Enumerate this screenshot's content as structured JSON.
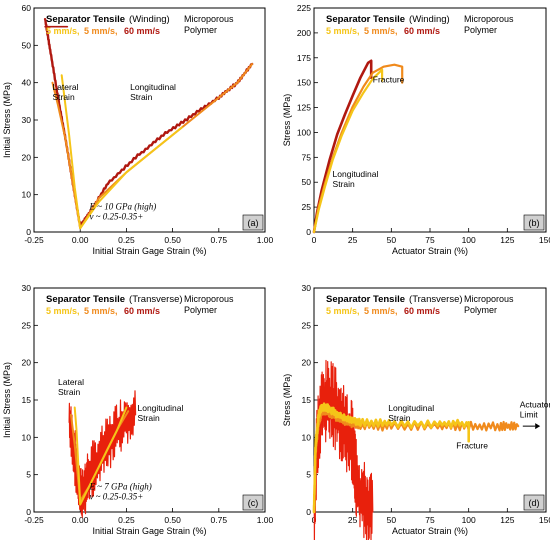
{
  "colors": {
    "slow": "#f5c518",
    "mid": "#f08a1c",
    "fast": "#b01810",
    "fast_d": "#e8200c"
  },
  "chart_data": [
    {
      "id": "a",
      "type": "line",
      "title": "Separator Tensile",
      "title_suffix": "(Winding)",
      "material": [
        "Microporous",
        "Polymer"
      ],
      "speeds": [
        "5 mm/s",
        "5 mm/s",
        "60 mm/s"
      ],
      "xlabel": "Initial Strain Gage Strain (%)",
      "ylabel": "Initial Stress (MPa)",
      "xlim": [
        -0.25,
        1.0
      ],
      "ylim": [
        0,
        60
      ],
      "xticks": [
        -0.25,
        0,
        0.25,
        0.5,
        0.75,
        1.0
      ],
      "xtick_labels": [
        "-0.25",
        "0.00",
        "0.25",
        "0.50",
        "0.75",
        "1.00"
      ],
      "yticks": [
        0,
        10,
        20,
        30,
        40,
        50,
        60
      ],
      "ytick_labels": [
        "0",
        "10",
        "20",
        "30",
        "40",
        "50",
        "60"
      ],
      "panel_label": "(a)",
      "annotations": [
        {
          "lines": [
            "Lateral",
            "Strain"
          ],
          "x": -0.15,
          "y": 38
        },
        {
          "lines": [
            "Longitudinal",
            "Strain"
          ],
          "x": 0.27,
          "y": 38
        }
      ],
      "formula": [
        "E ~ 10 GPa (high)",
        "ν ~ 0.25-0.35+"
      ],
      "formula_at": [
        0.05,
        6
      ],
      "series": [
        {
          "color": "fast",
          "width": 2.4,
          "osc": 0.25,
          "seed": 1,
          "x": [
            -0.19,
            -0.16,
            -0.12,
            -0.08,
            -0.04,
            0.0,
            0.05,
            0.15,
            0.3,
            0.45,
            0.6,
            0.75,
            0.85,
            0.93
          ],
          "y": [
            57,
            48,
            36,
            25,
            13,
            1.5,
            5,
            13,
            20,
            26,
            31,
            36,
            40,
            45
          ]
        },
        {
          "color": "fast",
          "width": 1.6,
          "osc": 0,
          "x": [
            -0.19,
            -0.07
          ],
          "y": [
            55,
            55
          ]
        },
        {
          "color": "mid",
          "width": 2.0,
          "osc": 0,
          "x": [
            -0.15,
            -0.12,
            -0.08,
            -0.04,
            0.0,
            0.1,
            0.25,
            0.45,
            0.6,
            0.75,
            0.85,
            0.93
          ],
          "y": [
            40,
            34,
            25,
            13,
            1,
            9,
            16,
            24,
            30,
            36,
            40,
            45
          ]
        },
        {
          "color": "slow",
          "width": 2.0,
          "osc": 0,
          "x": [
            -0.1,
            -0.06,
            -0.03,
            0.0,
            0.1,
            0.25,
            0.4,
            0.55
          ],
          "y": [
            42,
            26,
            12,
            1,
            8,
            16,
            22,
            28
          ]
        }
      ]
    },
    {
      "id": "b",
      "type": "line",
      "title": "Separator Tensile",
      "title_suffix": "(Winding)",
      "material": [
        "Microporous",
        "Polymer"
      ],
      "speeds": [
        "5 mm/s",
        "5 mm/s",
        "60 mm/s"
      ],
      "xlabel": "Actuator Strain (%)",
      "ylabel": "Stress (MPa)",
      "xlim": [
        0,
        150
      ],
      "ylim": [
        0,
        225
      ],
      "xticks": [
        0,
        25,
        50,
        75,
        100,
        125,
        150
      ],
      "xtick_labels": [
        "0",
        "25",
        "50",
        "75",
        "100",
        "125",
        "150"
      ],
      "yticks": [
        0,
        25,
        50,
        75,
        100,
        125,
        150,
        175,
        200,
        225
      ],
      "ytick_labels": [
        "0",
        "25",
        "50",
        "75",
        "100",
        "125",
        "150",
        "175",
        "200",
        "225"
      ],
      "panel_label": "(b)",
      "annotations": [
        {
          "lines": [
            "Fracture"
          ],
          "x": 38,
          "y": 150
        },
        {
          "lines": [
            "Longitudinal",
            "Strain"
          ],
          "x": 12,
          "y": 55
        }
      ],
      "series": [
        {
          "color": "fast",
          "width": 2.6,
          "osc": 0,
          "x": [
            0,
            2,
            5,
            10,
            15,
            20,
            25,
            30,
            35,
            37,
            37
          ],
          "y": [
            0,
            20,
            42,
            72,
            98,
            118,
            137,
            155,
            170,
            172,
            155
          ]
        },
        {
          "color": "mid",
          "width": 2.2,
          "osc": 0,
          "x": [
            0,
            3,
            7,
            12,
            18,
            25,
            32,
            38,
            45,
            52,
            57,
            57
          ],
          "y": [
            0,
            25,
            48,
            74,
            100,
            126,
            146,
            160,
            166,
            168,
            166,
            150
          ]
        },
        {
          "color": "slow",
          "width": 2.2,
          "osc": 0,
          "x": [
            0,
            3,
            7,
            12,
            18,
            25,
            32,
            38,
            44,
            44
          ],
          "y": [
            0,
            22,
            45,
            72,
            97,
            122,
            140,
            154,
            163,
            152
          ]
        }
      ]
    },
    {
      "id": "c",
      "type": "line",
      "title": "Separator Tensile",
      "title_suffix": "(Transverse)",
      "material": [
        "Microporous",
        "Polymer"
      ],
      "speeds": [
        "5 mm/s",
        "5 mm/s",
        "60 mm/s"
      ],
      "xlabel": "Initial Strain Gage Strain (%)",
      "ylabel": "Initial Stress (MPa)",
      "xlim": [
        -0.25,
        1.0
      ],
      "ylim": [
        0,
        30
      ],
      "xticks": [
        -0.25,
        0,
        0.25,
        0.5,
        0.75,
        1.0
      ],
      "xtick_labels": [
        "-0.25",
        "0.00",
        "0.25",
        "0.50",
        "0.75",
        "1.00"
      ],
      "yticks": [
        0,
        5,
        10,
        15,
        20,
        25,
        30
      ],
      "ytick_labels": [
        "0",
        "5",
        "10",
        "15",
        "20",
        "25",
        "30"
      ],
      "panel_label": "(c)",
      "annotations": [
        {
          "lines": [
            "Lateral",
            "Strain"
          ],
          "x": -0.12,
          "y": 17
        },
        {
          "lines": [
            "Longitudinal",
            "Strain"
          ],
          "x": 0.31,
          "y": 13.5
        }
      ],
      "formula": [
        "E ~ 7 GPa (high)",
        "ν ~ 0.25-0.35+"
      ],
      "formula_at": [
        0.05,
        3
      ],
      "series": [
        {
          "color": "fast_d",
          "width": 1.2,
          "osc": 2.6,
          "seed": 7,
          "x": [
            -0.06,
            -0.04,
            -0.02,
            0.0,
            0.02,
            0.05,
            0.1,
            0.15,
            0.2,
            0.25,
            0.3
          ],
          "y": [
            12,
            9,
            6,
            2,
            3,
            5,
            7,
            9,
            11,
            12.5,
            13
          ]
        },
        {
          "color": "mid",
          "width": 2.0,
          "osc": 0,
          "x": [
            -0.05,
            -0.03,
            -0.01,
            0.0,
            0.05,
            0.1,
            0.15,
            0.2,
            0.26
          ],
          "y": [
            13,
            9,
            4,
            1.5,
            3.5,
            6,
            8.5,
            11,
            13.5
          ]
        },
        {
          "color": "slow",
          "width": 2.0,
          "osc": 0,
          "x": [
            -0.03,
            -0.02,
            -0.01,
            0.0,
            0.05,
            0.1,
            0.15,
            0.2,
            0.25
          ],
          "y": [
            14,
            11,
            6,
            1,
            3.5,
            6,
            8.5,
            11,
            14
          ]
        }
      ]
    },
    {
      "id": "d",
      "type": "line",
      "title": "Separator Tensile",
      "title_suffix": "(Transverse)",
      "material": [
        "Microporous",
        "Polymer"
      ],
      "speeds": [
        "5 mm/s",
        "5 mm/s",
        "60 mm/s"
      ],
      "xlabel": "Actuator Strain (%)",
      "ylabel": "Stress (MPa)",
      "xlim": [
        0,
        150
      ],
      "ylim": [
        0,
        30
      ],
      "xticks": [
        0,
        25,
        50,
        75,
        100,
        125,
        150
      ],
      "xtick_labels": [
        "0",
        "25",
        "50",
        "75",
        "100",
        "125",
        "150"
      ],
      "yticks": [
        0,
        5,
        10,
        15,
        20,
        25,
        30
      ],
      "ytick_labels": [
        "0",
        "5",
        "10",
        "15",
        "20",
        "25",
        "30"
      ],
      "panel_label": "(d)",
      "annotations": [
        {
          "lines": [
            "Longitudinal",
            "Strain"
          ],
          "x": 48,
          "y": 13.5
        },
        {
          "lines": [
            "Fracture"
          ],
          "x": 92,
          "y": 8.5
        },
        {
          "lines": [
            "Actuator",
            "Limit"
          ],
          "x": 133,
          "y": 14
        }
      ],
      "arrow": {
        "x1": 135,
        "x2": 143,
        "y": 11.5
      },
      "series": [
        {
          "color": "fast_d",
          "width": 1.2,
          "osc": 3.8,
          "seed": 3,
          "x": [
            0,
            2,
            5,
            8,
            12,
            16,
            20,
            24,
            26,
            28,
            30,
            34,
            38
          ],
          "y": [
            0,
            10,
            14,
            15,
            14.5,
            13,
            11,
            10,
            7,
            4,
            2,
            1,
            0
          ]
        },
        {
          "color": "mid",
          "width": 2.2,
          "osc": 0.4,
          "seed": 5,
          "x": [
            0,
            1,
            3,
            5,
            8,
            12,
            20,
            30,
            50,
            80,
            100,
            120,
            132
          ],
          "y": [
            0,
            8,
            12,
            13.5,
            13.5,
            13,
            12,
            11.5,
            11.5,
            11.5,
            11.5,
            11.5,
            11.5
          ]
        },
        {
          "color": "slow",
          "width": 2.6,
          "osc": 0.35,
          "seed": 9,
          "x": [
            0,
            1,
            3,
            5,
            8,
            12,
            20,
            30,
            50,
            80,
            100,
            100
          ],
          "y": [
            0,
            9,
            13,
            14,
            14,
            13.5,
            12.5,
            12,
            11.8,
            11.8,
            11.8,
            9.5
          ]
        }
      ]
    }
  ]
}
